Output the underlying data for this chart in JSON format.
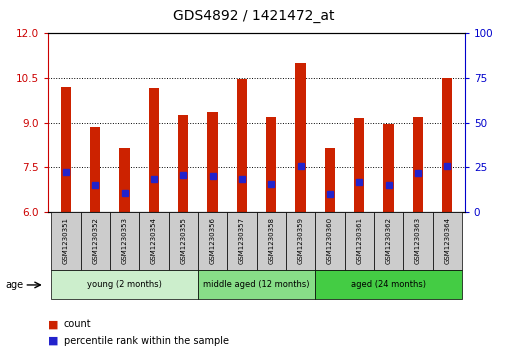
{
  "title": "GDS4892 / 1421472_at",
  "samples": [
    "GSM1230351",
    "GSM1230352",
    "GSM1230353",
    "GSM1230354",
    "GSM1230355",
    "GSM1230356",
    "GSM1230357",
    "GSM1230358",
    "GSM1230359",
    "GSM1230360",
    "GSM1230361",
    "GSM1230362",
    "GSM1230363",
    "GSM1230364"
  ],
  "count_values": [
    10.2,
    8.85,
    8.15,
    10.15,
    9.25,
    9.35,
    10.45,
    9.2,
    11.0,
    8.15,
    9.15,
    8.95,
    9.2,
    10.5
  ],
  "percentile_values": [
    7.35,
    6.9,
    6.65,
    7.1,
    7.25,
    7.2,
    7.1,
    6.95,
    7.55,
    6.6,
    7.0,
    6.9,
    7.3,
    7.55
  ],
  "ylim_left": [
    6,
    12
  ],
  "ylim_right": [
    0,
    100
  ],
  "yticks_left": [
    6,
    7.5,
    9,
    10.5,
    12
  ],
  "yticks_right": [
    0,
    25,
    50,
    75,
    100
  ],
  "bar_color": "#cc2200",
  "percentile_color": "#2222cc",
  "bar_bottom": 6.0,
  "groups": [
    {
      "label": "young (2 months)",
      "start": 0,
      "end": 4,
      "color": "#cceecc"
    },
    {
      "label": "middle aged (12 months)",
      "start": 5,
      "end": 8,
      "color": "#88dd88"
    },
    {
      "label": "aged (24 months)",
      "start": 9,
      "end": 13,
      "color": "#44cc44"
    }
  ],
  "bar_width": 0.35,
  "percentile_marker_size": 4,
  "left_spine_color": "#cc0000",
  "right_spine_color": "#0000cc",
  "label_box_color": "#cccccc",
  "grid_color": "#000000"
}
